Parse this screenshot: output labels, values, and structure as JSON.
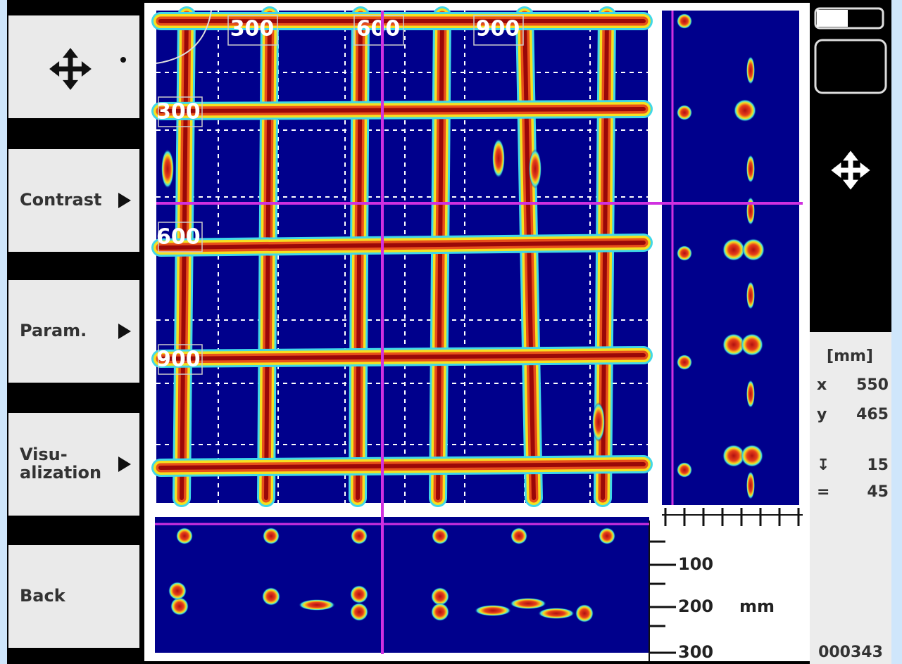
{
  "menu": {
    "buttons": [
      {
        "lines": [
          "Contrast"
        ]
      },
      {
        "lines": [
          "Param."
        ]
      },
      {
        "lines": [
          "Visu-",
          "alization"
        ]
      },
      {
        "lines": [
          "Back"
        ]
      }
    ]
  },
  "scan": {
    "x_labels": [
      "300",
      "600",
      "900"
    ],
    "y_labels": [
      "300",
      "600",
      "900"
    ]
  },
  "depth": {
    "ticks": [
      "100",
      "200",
      "300"
    ],
    "unit": "mm"
  },
  "info": {
    "unit": "[mm]",
    "rows": [
      {
        "label": "x",
        "value": "550"
      },
      {
        "label": "y",
        "value": "465"
      },
      {
        "label": "↧",
        "value": "15"
      },
      {
        "label": "=",
        "value": "45"
      }
    ],
    "counter": "000343"
  }
}
